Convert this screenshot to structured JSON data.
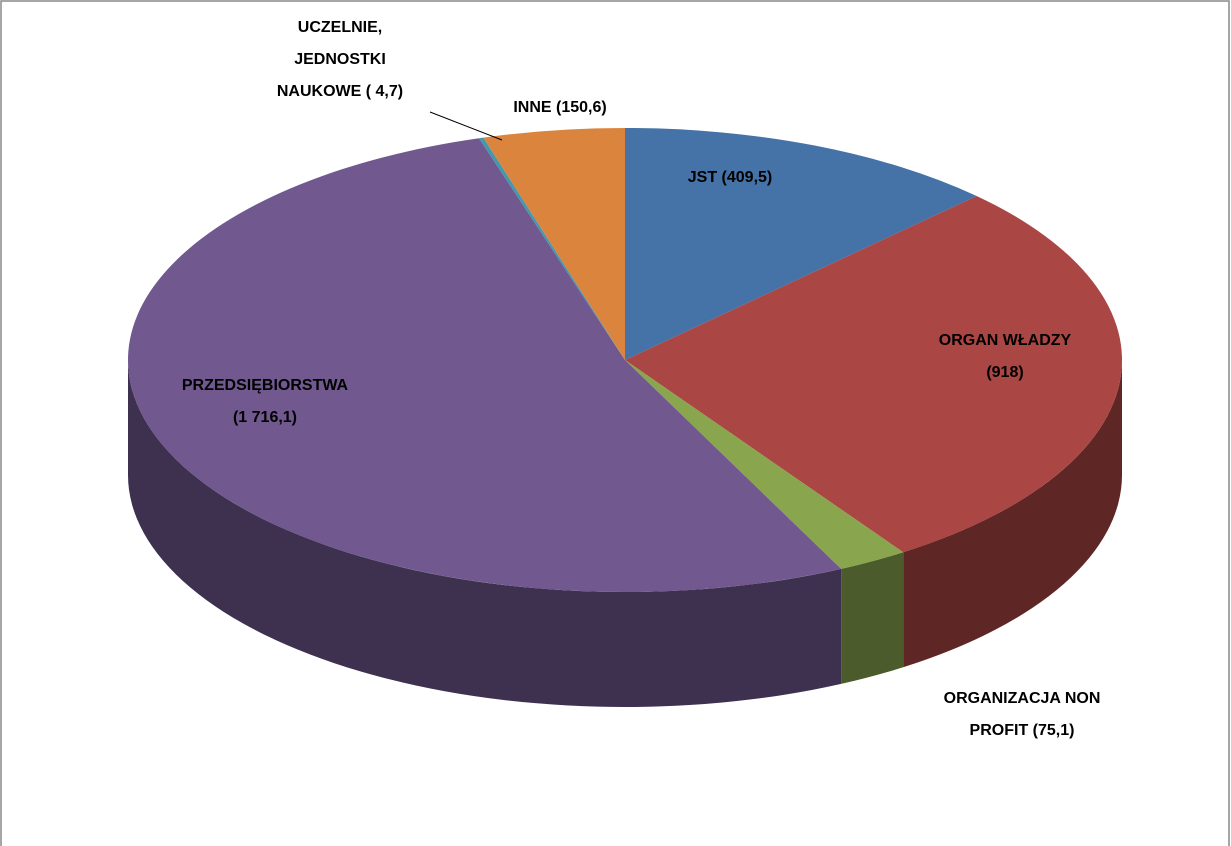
{
  "chart_data": {
    "type": "pie3d",
    "values": [
      409.5,
      918,
      75.1,
      1716.1,
      4.7,
      150.6
    ],
    "value_labels": [
      "JST (409,5)",
      "ORGAN WŁADZY (918)",
      "ORGANIZACJA NON PROFIT (75,1)",
      "PRZEDSIĘBIORSTWA (1 716,1)",
      "UCZELNIE, JEDNOSTKI NAUKOWE ( 4,7)",
      "INNE (150,6)"
    ],
    "colors": [
      "#4572a7",
      "#aa4643",
      "#89a54e",
      "#71588f",
      "#4198af",
      "#db843d"
    ]
  }
}
